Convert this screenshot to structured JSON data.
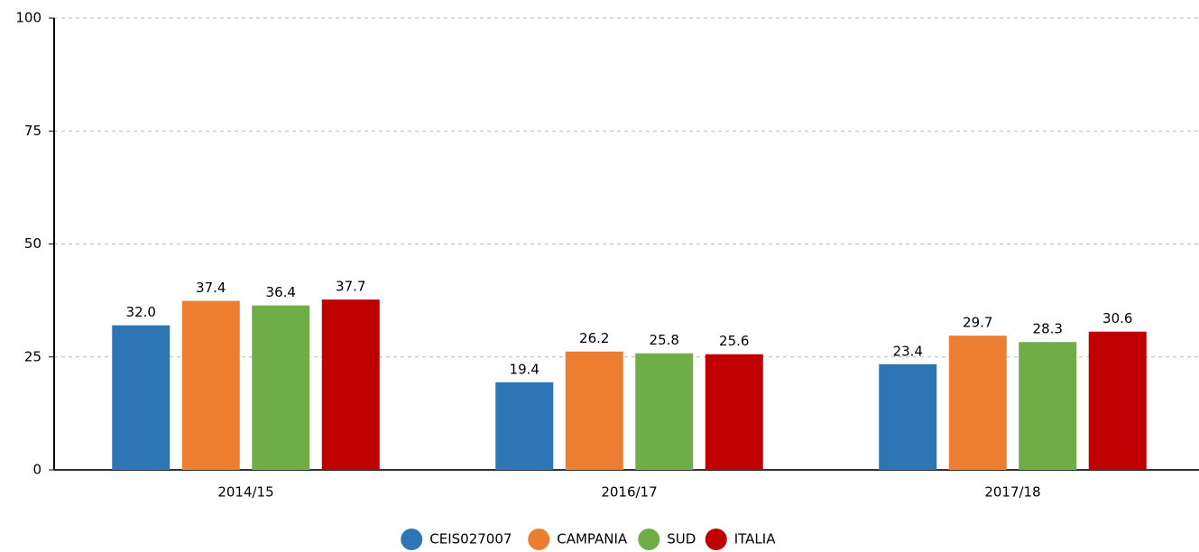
{
  "chart_data": {
    "type": "bar",
    "categories": [
      "2014/15",
      "2016/17",
      "2017/18"
    ],
    "series": [
      {
        "name": "CEIS027007",
        "color": "#2e75b6",
        "values": [
          32,
          19.4,
          23.4
        ],
        "value_labels": [
          "32.0",
          "19.4",
          "23.4"
        ]
      },
      {
        "name": "CAMPANIA",
        "color": "#ed7d31",
        "values": [
          37.4,
          26.2,
          29.7
        ],
        "value_labels": [
          "37.4",
          "26.2",
          "29.7"
        ]
      },
      {
        "name": "SUD",
        "color": "#70ad47",
        "values": [
          36.4,
          25.8,
          28.3
        ],
        "value_labels": [
          "36.4",
          "25.8",
          "28.3"
        ]
      },
      {
        "name": "ITALIA",
        "color": "#c00000",
        "values": [
          37.7,
          25.6,
          30.6
        ],
        "value_labels": [
          "37.7",
          "25.6",
          "30.6"
        ]
      }
    ],
    "ylim": [
      0,
      100
    ],
    "yticks": [
      0,
      25,
      50,
      75,
      100
    ],
    "grid": true,
    "legend": "bottom"
  }
}
